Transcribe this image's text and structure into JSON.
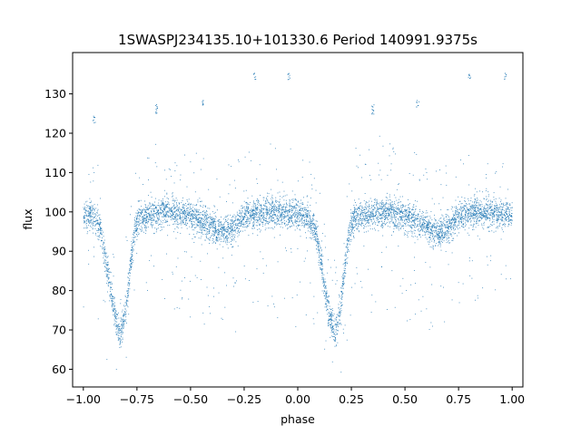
{
  "chart_data": {
    "type": "scatter",
    "title": "1SWASPJ234135.10+101330.6 Period 140991.9375s",
    "xlabel": "phase",
    "ylabel": "flux",
    "xlim": [
      -1.05,
      1.05
    ],
    "ylim": [
      55.5,
      140.5
    ],
    "x_ticks": [
      -1.0,
      -0.75,
      -0.5,
      -0.25,
      0.0,
      0.25,
      0.5,
      0.75,
      1.0
    ],
    "x_tick_labels": [
      "−1.00",
      "−0.75",
      "−0.50",
      "−0.25",
      "0.00",
      "0.25",
      "0.50",
      "0.75",
      "1.00"
    ],
    "y_ticks": [
      60,
      70,
      80,
      90,
      100,
      110,
      120,
      130
    ],
    "y_tick_labels": [
      "60",
      "70",
      "80",
      "90",
      "100",
      "110",
      "120",
      "130"
    ],
    "grid": false,
    "legend": "none",
    "marker_color": "#1f77b4",
    "light_curve": {
      "phase": [
        -1.0,
        -0.96,
        -0.92,
        -0.9,
        -0.88,
        -0.86,
        -0.84,
        -0.83,
        -0.82,
        -0.8,
        -0.78,
        -0.76,
        -0.74,
        -0.7,
        -0.6,
        -0.5,
        -0.45,
        -0.4,
        -0.36,
        -0.32,
        -0.28,
        -0.25,
        -0.2,
        -0.1,
        0.0,
        0.04,
        0.08,
        0.1,
        0.12,
        0.14,
        0.16,
        0.17,
        0.18,
        0.2,
        0.22,
        0.24,
        0.26,
        0.3,
        0.4,
        0.5,
        0.55,
        0.6,
        0.64,
        0.68,
        0.72,
        0.75,
        0.8,
        0.9,
        1.0
      ],
      "flux": [
        99,
        99,
        96,
        89,
        83,
        76,
        71,
        69,
        70,
        76,
        86,
        95,
        98,
        99,
        100,
        99,
        98,
        96,
        94.5,
        95,
        97,
        99,
        99.5,
        100,
        99.5,
        99,
        96,
        90,
        83,
        76,
        71,
        69,
        70,
        76,
        86,
        95,
        98,
        99,
        100,
        99,
        98,
        96,
        94.5,
        95,
        97,
        99,
        99.5,
        100,
        99
      ]
    },
    "outlier_clusters": [
      {
        "phase": -0.95,
        "flux": [
          123,
          124
        ]
      },
      {
        "phase": -0.66,
        "flux": [
          125,
          126,
          127
        ]
      },
      {
        "phase": -0.44,
        "flux": [
          127,
          128
        ]
      },
      {
        "phase": -0.2,
        "flux": [
          134,
          135
        ]
      },
      {
        "phase": -0.04,
        "flux": [
          134,
          135
        ]
      },
      {
        "phase": 0.35,
        "flux": [
          125,
          126,
          127
        ]
      },
      {
        "phase": 0.56,
        "flux": [
          127,
          128
        ]
      },
      {
        "phase": 0.8,
        "flux": [
          134,
          135
        ]
      },
      {
        "phase": 0.97,
        "flux": [
          134,
          135
        ]
      }
    ]
  }
}
